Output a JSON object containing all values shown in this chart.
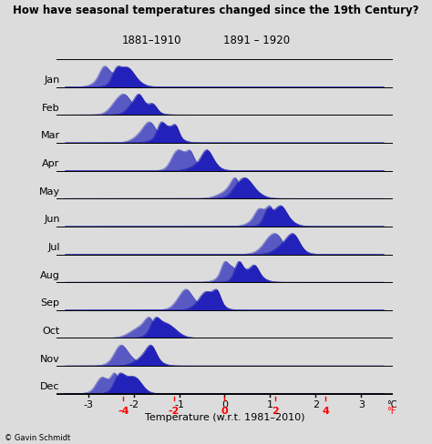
{
  "title": "How have seasonal temperatures changed since the 19th Century?",
  "months": [
    "Jan",
    "Feb",
    "Mar",
    "Apr",
    "May",
    "Jun",
    "Jul",
    "Aug",
    "Sep",
    "Oct",
    "Nov",
    "Dec"
  ],
  "label1": "1881–1910",
  "label2": "1891 – 1920",
  "period1_means": [
    -2.55,
    -2.2,
    -1.7,
    -0.85,
    0.1,
    0.85,
    1.05,
    0.15,
    -0.8,
    -1.85,
    -2.2,
    -2.55
  ],
  "period2_means": [
    -2.15,
    -1.8,
    -1.25,
    -0.45,
    0.5,
    1.2,
    1.4,
    0.55,
    -0.35,
    -1.3,
    -1.7,
    -2.1
  ],
  "period1_stds": [
    0.22,
    0.22,
    0.22,
    0.22,
    0.22,
    0.22,
    0.22,
    0.22,
    0.22,
    0.22,
    0.22,
    0.22
  ],
  "period2_stds": [
    0.22,
    0.22,
    0.22,
    0.22,
    0.22,
    0.22,
    0.22,
    0.22,
    0.22,
    0.22,
    0.22,
    0.22
  ],
  "fill_color": "#2222BB",
  "bg_color": "#DCDCDC",
  "xmin": -3.5,
  "xmax": 3.5,
  "celsius_ticks": [
    -3,
    -2,
    -1,
    0,
    1,
    2,
    3
  ],
  "fahrenheit_ticks": [
    "-4",
    "-2",
    "0",
    "2",
    "4"
  ],
  "fahrenheit_positions": [
    -2.222,
    -1.111,
    0.0,
    1.111,
    2.222
  ],
  "xlabel": "Temperature (w.r.t. 1981–2010)",
  "credit": "© Gavin Schmidt"
}
